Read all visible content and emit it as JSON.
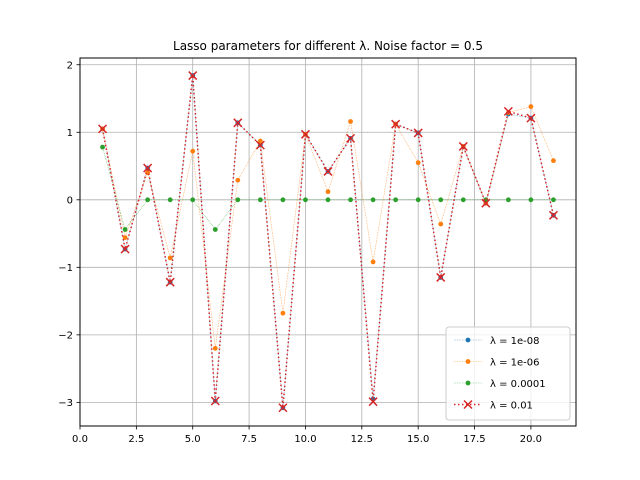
{
  "chart_data": {
    "type": "line",
    "title": "Lasso parameters for different λ. Noise factor = 0.5",
    "xlabel": "",
    "ylabel": "",
    "xlim": [
      0.0,
      22.0
    ],
    "ylim": [
      -3.35,
      2.1
    ],
    "xticks": [
      0.0,
      2.5,
      5.0,
      7.5,
      10.0,
      12.5,
      15.0,
      17.5,
      20.0
    ],
    "xtick_labels": [
      "0.0",
      "2.5",
      "5.0",
      "7.5",
      "10.0",
      "12.5",
      "15.0",
      "17.5",
      "20.0"
    ],
    "yticks": [
      -3,
      -2,
      -1,
      0,
      1,
      2
    ],
    "ytick_labels": [
      "−3",
      "−2",
      "−1",
      "0",
      "1",
      "2"
    ],
    "grid": true,
    "legend_position": "lower-right",
    "x": [
      1,
      2,
      3,
      4,
      5,
      6,
      7,
      8,
      9,
      10,
      11,
      12,
      13,
      14,
      15,
      16,
      17,
      18,
      19,
      20,
      21
    ],
    "series": [
      {
        "name": "λ = 1e-08",
        "color": "#1f77b4",
        "marker": "dot",
        "linestyle": "dotted-thin",
        "values": [
          1.05,
          -0.73,
          0.47,
          -1.22,
          1.84,
          -2.98,
          1.14,
          0.81,
          -3.08,
          0.97,
          0.42,
          0.91,
          -2.95,
          1.12,
          0.99,
          -1.15,
          0.79,
          -0.05,
          1.27,
          1.21,
          -0.23
        ]
      },
      {
        "name": "λ = 1e-06",
        "color": "#ff7f0e",
        "marker": "dot",
        "linestyle": "dotted-thin",
        "values": [
          1.05,
          -0.56,
          0.4,
          -0.86,
          0.72,
          -2.2,
          0.29,
          0.87,
          -1.68,
          0.97,
          0.12,
          1.16,
          -0.92,
          1.12,
          0.55,
          -0.36,
          0.79,
          -0.05,
          1.29,
          1.38,
          0.58
        ]
      },
      {
        "name": "λ = 0.0001",
        "color": "#2ca02c",
        "marker": "dot",
        "linestyle": "dotted-thin",
        "values": [
          0.78,
          -0.44,
          0.0,
          0.0,
          0.0,
          -0.44,
          0.0,
          0.0,
          0.0,
          0.0,
          0.0,
          0.0,
          0.0,
          0.0,
          0.0,
          0.0,
          0.0,
          0.0,
          0.0,
          0.0,
          0.0
        ]
      },
      {
        "name": "λ = 0.01",
        "color": "#d62728",
        "marker": "x",
        "linestyle": "dotted-thick",
        "values": [
          1.05,
          -0.73,
          0.47,
          -1.22,
          1.84,
          -2.98,
          1.14,
          0.81,
          -3.08,
          0.97,
          0.42,
          0.91,
          -2.99,
          1.12,
          0.99,
          -1.15,
          0.79,
          -0.05,
          1.31,
          1.21,
          -0.23
        ]
      }
    ]
  }
}
